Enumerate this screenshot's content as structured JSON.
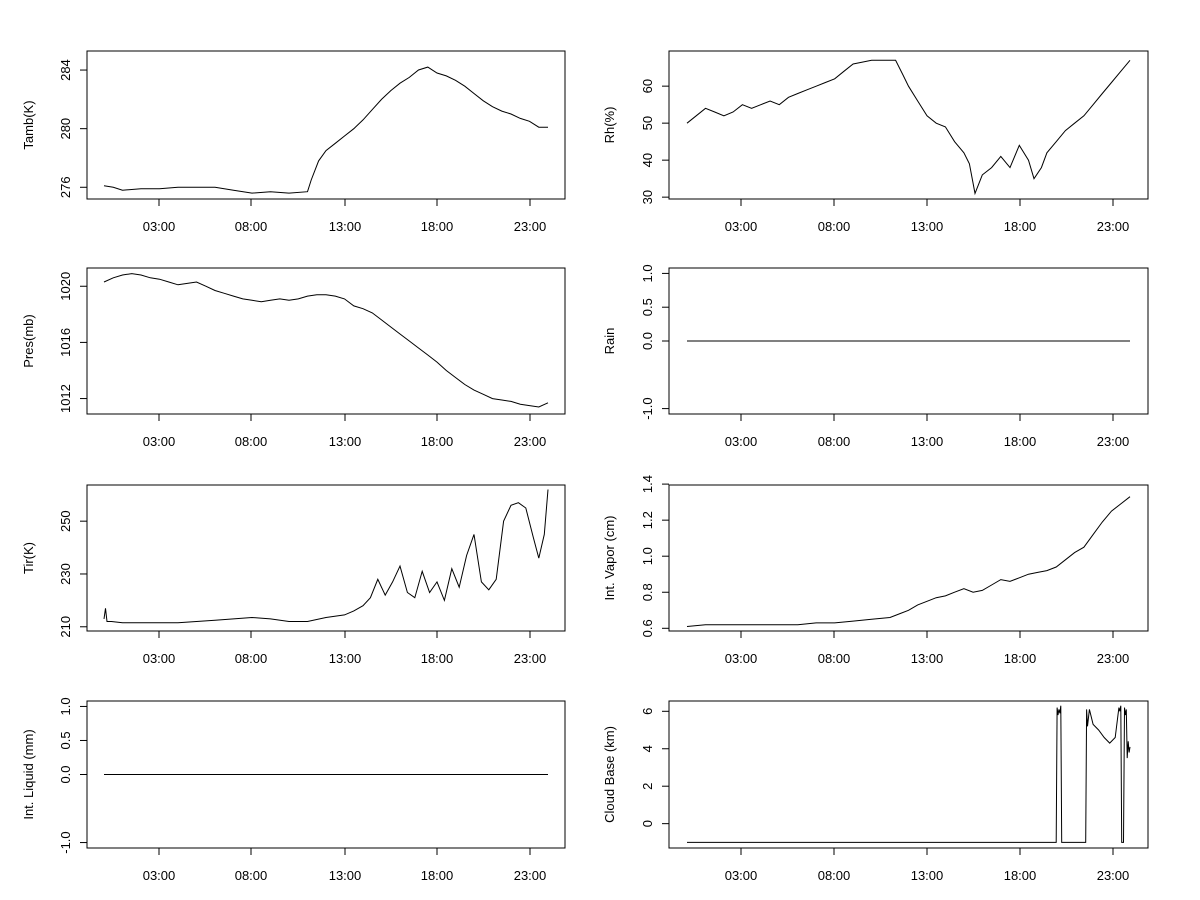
{
  "chart_data": [
    {
      "type": "line",
      "ylabel": "Tamb(K)",
      "xlabel": "",
      "x_ticks": [
        "03:00",
        "08:00",
        "13:00",
        "18:00",
        "23:00"
      ],
      "y_ticks": [
        "276",
        "280",
        "284"
      ],
      "ylim": [
        275.2,
        285.3
      ],
      "x": [
        0,
        0.5,
        1,
        2,
        3,
        4,
        5,
        6,
        7,
        8,
        9,
        10,
        11,
        11.2,
        11.6,
        12,
        12.5,
        13,
        13.5,
        14,
        14.5,
        15,
        15.5,
        16,
        16.5,
        17,
        17.5,
        18,
        18.5,
        19,
        19.5,
        20,
        20.5,
        21,
        21.5,
        22,
        22.5,
        23,
        23.5,
        24
      ],
      "values": [
        276.1,
        276.0,
        275.8,
        275.9,
        275.9,
        276.0,
        276.0,
        276.0,
        275.8,
        275.6,
        275.7,
        275.6,
        275.7,
        276.5,
        277.8,
        278.5,
        279.0,
        279.5,
        280.0,
        280.6,
        281.3,
        282.0,
        282.6,
        283.1,
        283.5,
        284.0,
        284.2,
        283.8,
        283.6,
        283.3,
        282.9,
        282.4,
        281.9,
        281.5,
        281.2,
        281.0,
        280.7,
        280.5,
        280.1,
        280.1
      ]
    },
    {
      "type": "line",
      "ylabel": "Rh(%)",
      "xlabel": "",
      "x_ticks": [
        "03:00",
        "08:00",
        "13:00",
        "18:00",
        "23:00"
      ],
      "y_ticks": [
        "30",
        "40",
        "50",
        "60"
      ],
      "ylim": [
        29.5,
        69.5
      ],
      "x": [
        0,
        0.5,
        1,
        1.5,
        2,
        2.5,
        3,
        3.5,
        4,
        4.5,
        5,
        5.5,
        6,
        6.5,
        7,
        7.5,
        8,
        8.5,
        9,
        9.5,
        10,
        10.5,
        11,
        11.3,
        11.7,
        12,
        12.5,
        13,
        13.5,
        14,
        14.5,
        15,
        15.3,
        15.6,
        16,
        16.5,
        17,
        17.5,
        18,
        18.5,
        18.8,
        19.2,
        19.5,
        20,
        20.5,
        21,
        21.5,
        22,
        22.5,
        23,
        23.5,
        24
      ],
      "values": [
        50,
        52,
        54,
        53,
        52,
        53,
        55,
        54,
        55,
        56,
        55,
        57,
        58,
        59,
        60,
        61,
        62,
        64,
        66,
        66.5,
        67,
        67,
        67,
        67,
        63,
        60,
        56,
        52,
        50,
        49,
        45,
        42,
        39,
        31,
        36,
        38,
        41,
        38,
        44,
        40,
        35,
        38,
        42,
        45,
        48,
        50,
        52,
        55,
        58,
        61,
        64,
        67
      ]
    },
    {
      "type": "line",
      "ylabel": "Pres(mb)",
      "xlabel": "",
      "x_ticks": [
        "03:00",
        "08:00",
        "13:00",
        "18:00",
        "23:00"
      ],
      "y_ticks": [
        "1012",
        "1016",
        "1020"
      ],
      "ylim": [
        1010.9,
        1021.3
      ],
      "x": [
        0,
        0.5,
        1,
        1.5,
        2,
        2.5,
        3,
        3.5,
        4,
        4.5,
        5,
        5.5,
        6,
        6.5,
        7,
        7.5,
        8,
        8.5,
        9,
        9.5,
        10,
        10.5,
        11,
        11.5,
        12,
        12.5,
        13,
        13.5,
        14,
        14.5,
        15,
        15.5,
        16,
        16.5,
        17,
        17.5,
        18,
        18.5,
        19,
        19.5,
        20,
        20.5,
        21,
        21.5,
        22,
        22.5,
        23,
        23.5,
        24
      ],
      "values": [
        1020.3,
        1020.6,
        1020.8,
        1020.9,
        1020.8,
        1020.6,
        1020.5,
        1020.3,
        1020.1,
        1020.2,
        1020.3,
        1020.0,
        1019.7,
        1019.5,
        1019.3,
        1019.1,
        1019.0,
        1018.9,
        1019.0,
        1019.1,
        1019.0,
        1019.1,
        1019.3,
        1019.4,
        1019.4,
        1019.3,
        1019.1,
        1018.6,
        1018.4,
        1018.1,
        1017.6,
        1017.1,
        1016.6,
        1016.1,
        1015.6,
        1015.1,
        1014.6,
        1014.0,
        1013.5,
        1013.0,
        1012.6,
        1012.3,
        1012.0,
        1011.9,
        1011.8,
        1011.6,
        1011.5,
        1011.4,
        1011.7
      ]
    },
    {
      "type": "line",
      "ylabel": "Rain",
      "xlabel": "",
      "x_ticks": [
        "03:00",
        "08:00",
        "13:00",
        "18:00",
        "23:00"
      ],
      "y_ticks": [
        "-1.0",
        "0.0",
        "0.5",
        "1.0"
      ],
      "ylim": [
        -1.08,
        1.08
      ],
      "x": [
        0,
        24
      ],
      "values": [
        0,
        0
      ]
    },
    {
      "type": "line",
      "ylabel": "Tir(K)",
      "xlabel": "",
      "x_ticks": [
        "03:00",
        "08:00",
        "13:00",
        "18:00",
        "23:00"
      ],
      "y_ticks": [
        "210",
        "230",
        "250"
      ],
      "ylim": [
        208.4,
        263.7
      ],
      "x": [
        0,
        0.08,
        0.16,
        0.4,
        1,
        2,
        3,
        4,
        5,
        6,
        7,
        8,
        9,
        10,
        11,
        12,
        13,
        13.5,
        14,
        14.4,
        14.8,
        15.2,
        15.6,
        16,
        16.4,
        16.8,
        17.2,
        17.6,
        18,
        18.4,
        18.8,
        19.2,
        19.6,
        20,
        20.4,
        20.8,
        21.2,
        21.6,
        22,
        22.4,
        22.8,
        23.2,
        23.5,
        23.8,
        24
      ],
      "values": [
        213,
        217,
        212,
        212,
        211.5,
        211.5,
        211.5,
        211.5,
        212,
        212.5,
        213,
        213.5,
        213,
        212,
        212,
        213.5,
        214.5,
        216,
        218,
        221,
        228,
        222,
        227,
        233,
        223,
        221,
        231,
        223,
        227,
        220,
        232,
        225,
        237,
        245,
        227,
        224,
        228,
        250,
        256,
        257,
        255,
        244,
        236,
        245,
        262
      ]
    },
    {
      "type": "line",
      "ylabel": "Int. Vapor (cm)",
      "xlabel": "",
      "x_ticks": [
        "03:00",
        "08:00",
        "13:00",
        "18:00",
        "23:00"
      ],
      "y_ticks": [
        "0.6",
        "0.8",
        "1.0",
        "1.2",
        "1.4"
      ],
      "ylim": [
        0.585,
        1.395
      ],
      "x": [
        0,
        1,
        2,
        3,
        4,
        5,
        6,
        7,
        8,
        9,
        10,
        11,
        11.5,
        12,
        12.5,
        13,
        13.5,
        14,
        14.5,
        15,
        15.5,
        16,
        16.5,
        17,
        17.5,
        18,
        18.5,
        19,
        19.5,
        20,
        20.5,
        21,
        21.5,
        22,
        22.5,
        23,
        23.5,
        24
      ],
      "values": [
        0.61,
        0.62,
        0.62,
        0.62,
        0.62,
        0.62,
        0.62,
        0.63,
        0.63,
        0.64,
        0.65,
        0.66,
        0.68,
        0.7,
        0.73,
        0.75,
        0.77,
        0.78,
        0.8,
        0.82,
        0.8,
        0.81,
        0.84,
        0.87,
        0.86,
        0.88,
        0.9,
        0.91,
        0.92,
        0.94,
        0.98,
        1.02,
        1.05,
        1.12,
        1.19,
        1.25,
        1.29,
        1.33
      ]
    },
    {
      "type": "line",
      "ylabel": "Int. Liquid (mm)",
      "xlabel": "",
      "x_ticks": [
        "03:00",
        "08:00",
        "13:00",
        "18:00",
        "23:00"
      ],
      "y_ticks": [
        "-1.0",
        "0.0",
        "0.5",
        "1.0"
      ],
      "ylim": [
        -1.08,
        1.08
      ],
      "x": [
        0,
        24
      ],
      "values": [
        0,
        0
      ]
    },
    {
      "type": "line",
      "ylabel": "Cloud Base (km)",
      "xlabel": "",
      "x_ticks": [
        "03:00",
        "08:00",
        "13:00",
        "18:00",
        "23:00"
      ],
      "y_ticks": [
        "0",
        "2",
        "4",
        "6"
      ],
      "ylim": [
        -1.3,
        6.55
      ],
      "x": [
        0,
        20,
        20.05,
        20.1,
        20.15,
        20.2,
        20.25,
        20.3,
        21.6,
        21.65,
        21.7,
        21.8,
        22,
        22.3,
        22.6,
        22.9,
        23.2,
        23.4,
        23.45,
        23.5,
        23.55,
        23.65,
        23.7,
        23.75,
        23.8,
        23.85,
        23.9,
        23.95,
        24
      ],
      "values": [
        -1,
        -1,
        6.2,
        5.8,
        6.1,
        5.9,
        6.3,
        -1,
        -1,
        6.1,
        5.2,
        6.1,
        5.3,
        5.0,
        4.6,
        4.3,
        4.6,
        6.2,
        6.0,
        6.3,
        -1,
        -1,
        6.2,
        5.8,
        6.1,
        3.5,
        4.4,
        3.8,
        4.1
      ]
    }
  ]
}
